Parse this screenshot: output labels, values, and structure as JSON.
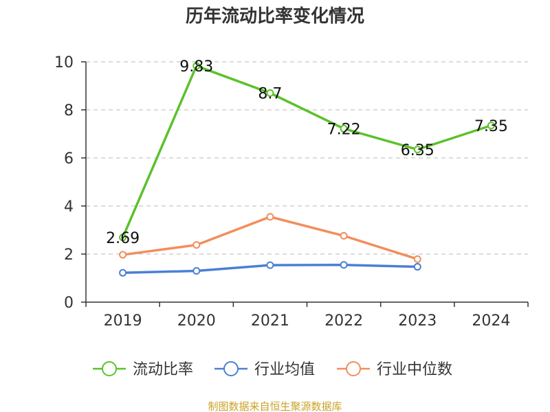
{
  "chart_data": {
    "type": "line",
    "title": "历年流动比率变化情况",
    "categories": [
      "2019",
      "2020",
      "2021",
      "2022",
      "2023",
      "2024"
    ],
    "ylim": [
      0,
      10
    ],
    "yticks": [
      0,
      2,
      4,
      6,
      8,
      10
    ],
    "grid": true,
    "legend_position": "bottom",
    "series": [
      {
        "name": "流动比率",
        "color": "#5cc12b",
        "values": [
          2.69,
          9.83,
          8.7,
          7.22,
          6.35,
          7.35
        ],
        "labels": [
          "2.69",
          "9.83",
          "8.7",
          "7.22",
          "6.35",
          "7.35"
        ]
      },
      {
        "name": "行业均值",
        "color": "#4a7fd6",
        "values": [
          1.22,
          1.3,
          1.54,
          1.55,
          1.47,
          null
        ]
      },
      {
        "name": "行业中位数",
        "color": "#f28e5c",
        "values": [
          1.97,
          2.38,
          3.55,
          2.76,
          1.79,
          null
        ]
      }
    ],
    "source": "制图数据来自恒生聚源数据库"
  }
}
